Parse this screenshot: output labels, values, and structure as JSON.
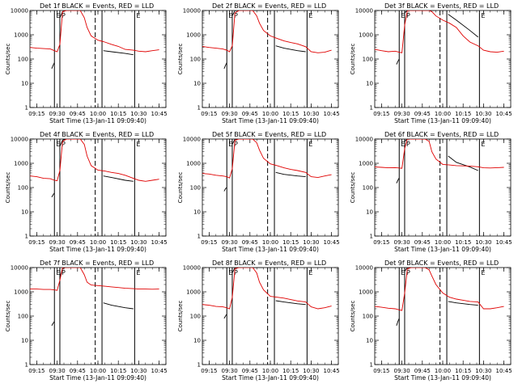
{
  "figure": {
    "background": "#ffffff",
    "colors": {
      "events": "#000000",
      "lld": "#e00000",
      "axes": "#000000"
    },
    "shared": {
      "type": "line",
      "yscale": "log",
      "ylim": [
        1,
        10000
      ],
      "yticks": [
        "1",
        "10",
        "100",
        "1000",
        "10000"
      ],
      "ylabel": "Counts/sec",
      "xticks": [
        "09:15",
        "09:30",
        "09:45",
        "10:00",
        "10:15",
        "10:30",
        "10:45"
      ],
      "xlabel": "Start Time (13-Jan-11 09:09:40)",
      "vlines_solid": [
        "09:28",
        "09:32",
        "10:03",
        "10:27"
      ],
      "vlines_dashed": [
        "09:58"
      ],
      "markers": {
        "start": "E",
        "second": "P",
        "end": "E"
      }
    }
  },
  "chart_data": [
    {
      "type": "line",
      "title": "Det 1f BLACK = Events, RED = LLD",
      "series": [
        {
          "name": "Events",
          "x": [
            "09:26",
            "09:27",
            "09:28",
            "09:30",
            "09:31",
            "09:32",
            "09:34",
            "09:36",
            "09:40",
            "09:45",
            "09:50",
            "09:55",
            "10:00",
            "10:02",
            "10:04",
            "10:10",
            "10:20",
            "10:26"
          ],
          "y": [
            40,
            55,
            70,
            null,
            null,
            5000,
            9000,
            10000,
            10000,
            10000,
            10000,
            10000,
            null,
            null,
            220,
            200,
            170,
            150
          ]
        },
        {
          "name": "LLD",
          "x": [
            "09:10",
            "09:15",
            "09:20",
            "09:25",
            "09:28",
            "09:30",
            "09:32",
            "09:34",
            "09:37",
            "09:42",
            "09:45",
            "09:47",
            "09:50",
            "09:52",
            "09:55",
            "10:00",
            "10:05",
            "10:10",
            "10:15",
            "10:20",
            "10:26",
            "10:30",
            "10:35",
            "10:40",
            "10:45"
          ],
          "y": [
            300,
            280,
            270,
            260,
            220,
            200,
            400,
            9000,
            10000,
            10000,
            10000,
            10000,
            5000,
            2000,
            900,
            600,
            500,
            400,
            330,
            250,
            230,
            210,
            200,
            220,
            240
          ]
        }
      ]
    },
    {
      "type": "line",
      "title": "Det 2f BLACK = Events, RED = LLD",
      "series": [
        {
          "name": "Events",
          "x": [
            "09:26",
            "09:27",
            "09:28",
            "09:30",
            "09:31",
            "09:32",
            "09:34",
            "09:36",
            "09:40",
            "09:45",
            "09:50",
            "09:55",
            "10:00",
            "10:02",
            "10:04",
            "10:10",
            "10:20",
            "10:26"
          ],
          "y": [
            40,
            55,
            70,
            null,
            null,
            6000,
            10000,
            10000,
            10000,
            10000,
            10000,
            10000,
            null,
            null,
            350,
            280,
            220,
            200
          ]
        },
        {
          "name": "LLD",
          "x": [
            "09:10",
            "09:15",
            "09:20",
            "09:25",
            "09:28",
            "09:30",
            "09:32",
            "09:34",
            "09:37",
            "09:42",
            "09:45",
            "09:47",
            "09:50",
            "09:52",
            "09:55",
            "10:00",
            "10:05",
            "10:10",
            "10:15",
            "10:20",
            "10:26",
            "10:30",
            "10:35",
            "10:40",
            "10:45"
          ],
          "y": [
            330,
            300,
            280,
            260,
            230,
            200,
            350,
            8000,
            10000,
            10000,
            10000,
            10000,
            6000,
            3000,
            1500,
            900,
            700,
            560,
            480,
            420,
            320,
            200,
            180,
            190,
            230
          ]
        }
      ]
    },
    {
      "type": "line",
      "title": "Det 3f BLACK = Events, RED = LLD",
      "series": [
        {
          "name": "Events",
          "x": [
            "09:26",
            "09:27",
            "09:28",
            "09:30",
            "09:31",
            "09:32",
            "09:34",
            "09:36",
            "09:40",
            "09:45",
            "09:50",
            "09:55",
            "10:00",
            "10:02",
            "10:04",
            "10:10",
            "10:20",
            "10:26"
          ],
          "y": [
            60,
            80,
            100,
            null,
            null,
            8000,
            10000,
            10000,
            10000,
            10000,
            10000,
            10000,
            null,
            null,
            7000,
            4000,
            1500,
            800
          ]
        },
        {
          "name": "LLD",
          "x": [
            "09:10",
            "09:15",
            "09:20",
            "09:25",
            "09:28",
            "09:30",
            "09:32",
            "09:34",
            "09:37",
            "09:42",
            "09:45",
            "09:47",
            "09:50",
            "09:52",
            "09:55",
            "10:00",
            "10:05",
            "10:10",
            "10:15",
            "10:20",
            "10:26",
            "10:30",
            "10:35",
            "10:40",
            "10:45"
          ],
          "y": [
            250,
            220,
            200,
            210,
            190,
            180,
            2500,
            10000,
            10000,
            10000,
            10000,
            10000,
            10000,
            9000,
            6000,
            4000,
            3000,
            2000,
            900,
            500,
            350,
            230,
            200,
            190,
            210
          ]
        }
      ]
    },
    {
      "type": "line",
      "title": "Det 4f BLACK = Events, RED = LLD",
      "series": [
        {
          "name": "Events",
          "x": [
            "09:26",
            "09:27",
            "09:28",
            "09:30",
            "09:31",
            "09:32",
            "09:34",
            "09:36",
            "09:40",
            "09:45",
            "09:50",
            "09:55",
            "10:00",
            "10:02",
            "10:04",
            "10:10",
            "10:20",
            "10:26"
          ],
          "y": [
            40,
            50,
            60,
            null,
            null,
            5000,
            9000,
            10000,
            10000,
            10000,
            10000,
            10000,
            null,
            null,
            300,
            260,
            200,
            180
          ]
        },
        {
          "name": "LLD",
          "x": [
            "09:10",
            "09:15",
            "09:20",
            "09:25",
            "09:28",
            "09:30",
            "09:32",
            "09:34",
            "09:37",
            "09:42",
            "09:45",
            "09:47",
            "09:50",
            "09:52",
            "09:55",
            "10:00",
            "10:05",
            "10:10",
            "10:15",
            "10:20",
            "10:26",
            "10:30",
            "10:35",
            "10:40",
            "10:45"
          ],
          "y": [
            300,
            280,
            240,
            230,
            200,
            190,
            500,
            8000,
            10000,
            10000,
            10000,
            10000,
            6000,
            2000,
            800,
            520,
            480,
            420,
            380,
            320,
            240,
            200,
            180,
            200,
            220
          ]
        }
      ]
    },
    {
      "type": "line",
      "title": "Det 5f BLACK = Events, RED = LLD",
      "series": [
        {
          "name": "Events",
          "x": [
            "09:26",
            "09:27",
            "09:28",
            "09:30",
            "09:31",
            "09:32",
            "09:34",
            "09:36",
            "09:40",
            "09:45",
            "09:50",
            "09:55",
            "10:00",
            "10:02",
            "10:04",
            "10:10",
            "10:20",
            "10:26"
          ],
          "y": [
            70,
            90,
            100,
            null,
            null,
            6000,
            10000,
            10000,
            10000,
            10000,
            10000,
            10000,
            null,
            null,
            420,
            350,
            300,
            280
          ]
        },
        {
          "name": "LLD",
          "x": [
            "09:10",
            "09:15",
            "09:20",
            "09:25",
            "09:28",
            "09:30",
            "09:32",
            "09:34",
            "09:37",
            "09:42",
            "09:45",
            "09:47",
            "09:50",
            "09:52",
            "09:55",
            "10:00",
            "10:05",
            "10:10",
            "10:15",
            "10:20",
            "10:26",
            "10:30",
            "10:35",
            "10:40",
            "10:45"
          ],
          "y": [
            380,
            360,
            320,
            300,
            280,
            250,
            600,
            9000,
            10000,
            10000,
            10000,
            10000,
            7000,
            3500,
            1600,
            950,
            800,
            650,
            560,
            500,
            420,
            280,
            260,
            300,
            340
          ]
        }
      ]
    },
    {
      "type": "line",
      "title": "Det 6f BLACK = Events, RED = LLD",
      "series": [
        {
          "name": "Events",
          "x": [
            "09:26",
            "09:27",
            "09:28",
            "09:30",
            "09:31",
            "09:32",
            "09:34",
            "09:36",
            "09:40",
            "09:45",
            "09:50",
            "09:55",
            "10:00",
            "10:02",
            "10:04",
            "10:10",
            "10:20",
            "10:26"
          ],
          "y": [
            150,
            200,
            250,
            null,
            null,
            8000,
            10000,
            10000,
            10000,
            10000,
            10000,
            10000,
            null,
            null,
            2000,
            1100,
            700,
            500
          ]
        },
        {
          "name": "LLD",
          "x": [
            "09:10",
            "09:15",
            "09:20",
            "09:25",
            "09:28",
            "09:30",
            "09:32",
            "09:34",
            "09:37",
            "09:42",
            "09:45",
            "09:47",
            "09:50",
            "09:52",
            "09:55",
            "10:00",
            "10:05",
            "10:10",
            "10:15",
            "10:20",
            "10:26",
            "10:30",
            "10:35",
            "10:40",
            "10:45"
          ],
          "y": [
            700,
            680,
            650,
            660,
            640,
            620,
            4000,
            10000,
            10000,
            10000,
            10000,
            10000,
            8000,
            3000,
            1500,
            900,
            850,
            800,
            780,
            760,
            720,
            650,
            640,
            660,
            680
          ]
        }
      ]
    },
    {
      "type": "line",
      "title": "Det 7f BLACK = Events, RED = LLD",
      "series": [
        {
          "name": "Events",
          "x": [
            "09:26",
            "09:27",
            "09:28",
            "09:30",
            "09:31",
            "09:32",
            "09:34",
            "09:36",
            "09:40",
            "09:45",
            "09:50",
            "09:55",
            "10:00",
            "10:02",
            "10:04",
            "10:10",
            "10:20",
            "10:26"
          ],
          "y": [
            40,
            50,
            60,
            null,
            null,
            4000,
            9000,
            10000,
            10000,
            10000,
            10000,
            10000,
            null,
            null,
            350,
            280,
            220,
            200
          ]
        },
        {
          "name": "LLD",
          "x": [
            "09:10",
            "09:15",
            "09:20",
            "09:25",
            "09:28",
            "09:30",
            "09:32",
            "09:34",
            "09:37",
            "09:42",
            "09:45",
            "09:47",
            "09:50",
            "09:52",
            "09:55",
            "10:00",
            "10:05",
            "10:10",
            "10:15",
            "10:20",
            "10:26",
            "10:30",
            "10:35",
            "10:40",
            "10:45"
          ],
          "y": [
            1300,
            1300,
            1250,
            1250,
            1200,
            1150,
            3000,
            10000,
            10000,
            10000,
            10000,
            10000,
            5000,
            2500,
            1900,
            1800,
            1700,
            1600,
            1500,
            1400,
            1350,
            1300,
            1300,
            1280,
            1300
          ]
        }
      ]
    },
    {
      "type": "line",
      "title": "Det 8f BLACK = Events, RED = LLD",
      "series": [
        {
          "name": "Events",
          "x": [
            "09:26",
            "09:27",
            "09:28",
            "09:30",
            "09:31",
            "09:32",
            "09:34",
            "09:36",
            "09:40",
            "09:45",
            "09:50",
            "09:55",
            "10:00",
            "10:02",
            "10:04",
            "10:10",
            "10:20",
            "10:26"
          ],
          "y": [
            80,
            100,
            120,
            null,
            null,
            6000,
            10000,
            10000,
            10000,
            10000,
            10000,
            10000,
            null,
            null,
            430,
            380,
            320,
            300
          ]
        },
        {
          "name": "LLD",
          "x": [
            "09:10",
            "09:15",
            "09:20",
            "09:25",
            "09:28",
            "09:30",
            "09:32",
            "09:34",
            "09:37",
            "09:42",
            "09:45",
            "09:47",
            "09:50",
            "09:52",
            "09:55",
            "10:00",
            "10:05",
            "10:10",
            "10:15",
            "10:20",
            "10:26",
            "10:30",
            "10:35",
            "10:40",
            "10:45"
          ],
          "y": [
            300,
            280,
            250,
            240,
            220,
            200,
            600,
            9000,
            10000,
            10000,
            10000,
            10000,
            6000,
            2500,
            1200,
            650,
            600,
            550,
            480,
            420,
            380,
            240,
            200,
            220,
            260
          ]
        }
      ]
    },
    {
      "type": "line",
      "title": "Det 9f BLACK = Events, RED = LLD",
      "series": [
        {
          "name": "Events",
          "x": [
            "09:26",
            "09:27",
            "09:28",
            "09:30",
            "09:31",
            "09:32",
            "09:34",
            "09:36",
            "09:40",
            "09:45",
            "09:50",
            "09:55",
            "10:00",
            "10:02",
            "10:04",
            "10:10",
            "10:20",
            "10:26"
          ],
          "y": [
            40,
            60,
            80,
            null,
            null,
            7000,
            10000,
            10000,
            10000,
            10000,
            10000,
            10000,
            null,
            null,
            400,
            350,
            300,
            280
          ]
        },
        {
          "name": "LLD",
          "x": [
            "09:10",
            "09:15",
            "09:20",
            "09:25",
            "09:28",
            "09:30",
            "09:32",
            "09:34",
            "09:37",
            "09:42",
            "09:45",
            "09:47",
            "09:50",
            "09:52",
            "09:55",
            "10:00",
            "10:05",
            "10:10",
            "10:15",
            "10:20",
            "10:26",
            "10:30",
            "10:35",
            "10:40",
            "10:45"
          ],
          "y": [
            250,
            230,
            210,
            200,
            180,
            170,
            900,
            9000,
            10000,
            10000,
            10000,
            10000,
            8000,
            4500,
            2000,
            900,
            600,
            500,
            450,
            400,
            380,
            200,
            200,
            220,
            250
          ]
        }
      ]
    }
  ]
}
